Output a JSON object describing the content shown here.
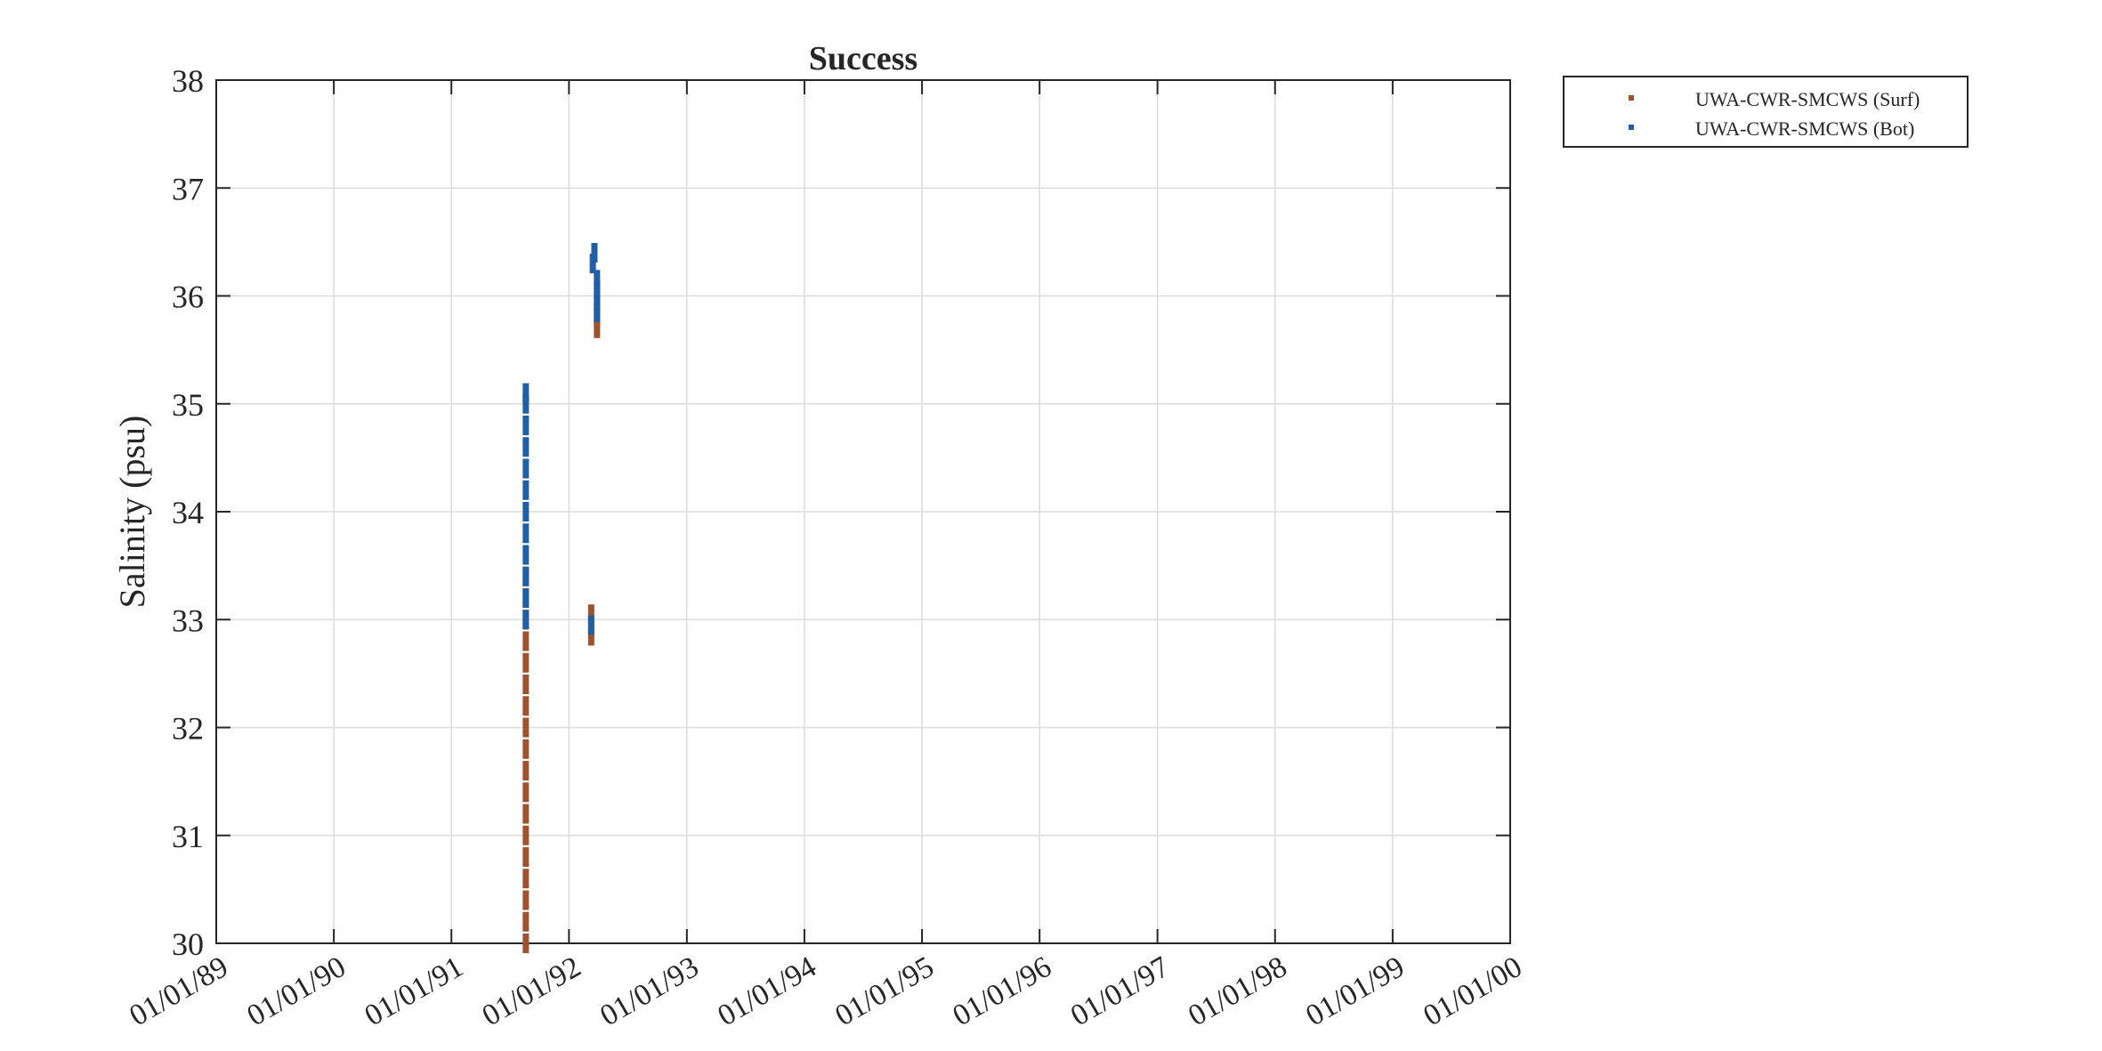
{
  "chart_data": {
    "type": "scatter",
    "title": "Success",
    "xlabel": "",
    "ylabel": "Salinity (psu)",
    "xlim": [
      "1989-01-01",
      "2000-01-01"
    ],
    "ylim": [
      30,
      38
    ],
    "xtick_values": [
      "1989-01-01",
      "1990-01-01",
      "1991-01-01",
      "1992-01-01",
      "1993-01-01",
      "1994-01-01",
      "1995-01-01",
      "1996-01-01",
      "1997-01-01",
      "1998-01-01",
      "1999-01-01",
      "2000-01-01"
    ],
    "xtick_labels": [
      "01/01/89",
      "01/01/90",
      "01/01/91",
      "01/01/92",
      "01/01/93",
      "01/01/94",
      "01/01/95",
      "01/01/96",
      "01/01/97",
      "01/01/98",
      "01/01/99",
      "01/01/00"
    ],
    "ytick_labels": [
      "30",
      "31",
      "32",
      "33",
      "34",
      "35",
      "36",
      "37",
      "38"
    ],
    "grid": true,
    "legend_position": "outside-top-right",
    "series": [
      {
        "name": "UWA-CWR-SMCWS (Surf)",
        "color": "#A0522D",
        "marker": "square",
        "points": [
          [
            "1991-08-20",
            30.0
          ],
          [
            "1991-08-20",
            30.2
          ],
          [
            "1991-08-20",
            30.4
          ],
          [
            "1991-08-20",
            30.6
          ],
          [
            "1991-08-20",
            30.8
          ],
          [
            "1991-08-20",
            31.0
          ],
          [
            "1991-08-20",
            31.2
          ],
          [
            "1991-08-20",
            31.4
          ],
          [
            "1991-08-20",
            31.6
          ],
          [
            "1991-08-20",
            31.8
          ],
          [
            "1991-08-20",
            32.0
          ],
          [
            "1991-08-20",
            32.2
          ],
          [
            "1991-08-20",
            32.4
          ],
          [
            "1991-08-20",
            32.6
          ],
          [
            "1991-08-20",
            32.8
          ],
          [
            "1991-08-20",
            33.0
          ],
          [
            "1991-08-20",
            33.2
          ],
          [
            "1991-08-20",
            33.4
          ],
          [
            "1992-03-10",
            32.85
          ],
          [
            "1992-03-10",
            33.05
          ],
          [
            "1992-03-28",
            35.7
          ],
          [
            "1992-03-28",
            35.8
          ]
        ]
      },
      {
        "name": "UWA-CWR-SMCWS (Bot)",
        "color": "#1F5FA6",
        "marker": "square",
        "points": [
          [
            "1991-08-20",
            33.0
          ],
          [
            "1991-08-20",
            33.2
          ],
          [
            "1991-08-20",
            33.4
          ],
          [
            "1991-08-20",
            33.6
          ],
          [
            "1991-08-20",
            33.8
          ],
          [
            "1991-08-20",
            34.0
          ],
          [
            "1991-08-20",
            34.2
          ],
          [
            "1991-08-20",
            34.4
          ],
          [
            "1991-08-20",
            34.6
          ],
          [
            "1991-08-20",
            34.8
          ],
          [
            "1991-08-20",
            35.0
          ],
          [
            "1991-08-20",
            35.1
          ],
          [
            "1992-03-10",
            32.95
          ],
          [
            "1992-03-15",
            36.3
          ],
          [
            "1992-03-20",
            36.4
          ],
          [
            "1992-03-28",
            35.85
          ],
          [
            "1992-03-28",
            35.95
          ],
          [
            "1992-03-28",
            36.05
          ],
          [
            "1992-03-28",
            36.15
          ]
        ]
      }
    ]
  }
}
